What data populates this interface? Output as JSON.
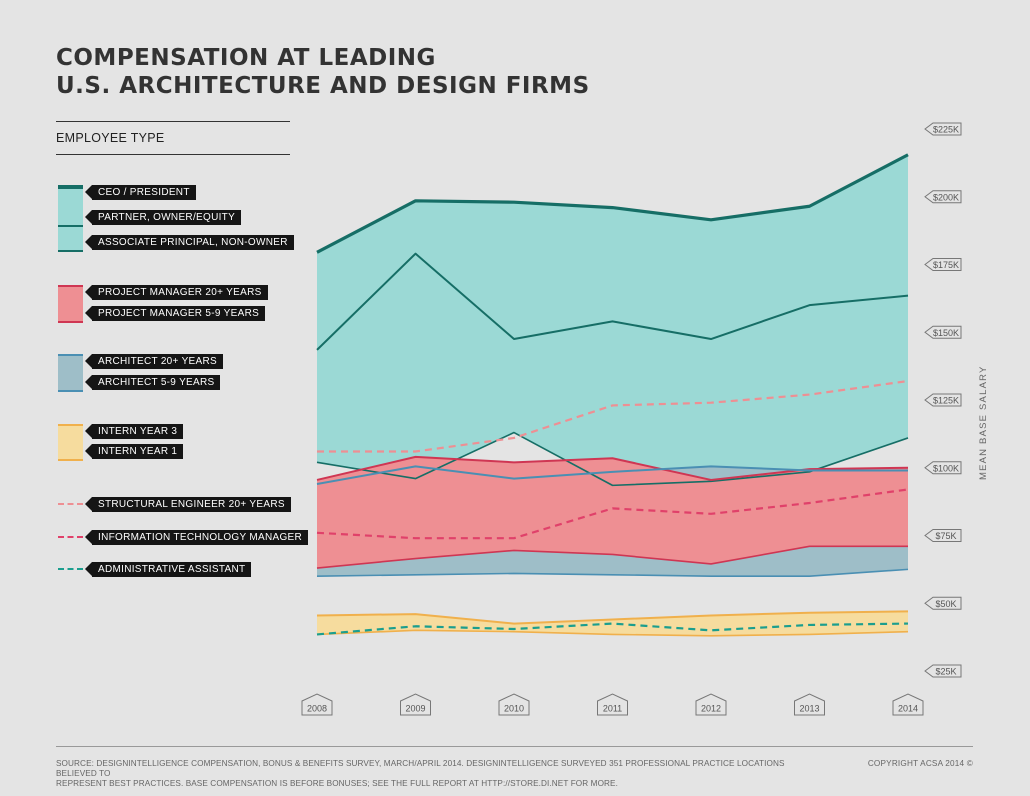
{
  "title_line1": "COMPENSATION AT LEADING",
  "title_line2": "U.S. ARCHITECTURE AND DESIGN FIRMS",
  "legend_heading": "EMPLOYEE TYPE",
  "legend": [
    {
      "label": "CEO / PRESIDENT",
      "color": "#166e66",
      "swatch": "#9bd9d5",
      "style": "solid-thick"
    },
    {
      "label": "PARTNER, OWNER/EQUITY",
      "color": "#166e66",
      "swatch": "#9bd9d5",
      "style": "solid"
    },
    {
      "label": "ASSOCIATE PRINCIPAL, NON-OWNER",
      "color": "#166e66",
      "swatch": "#9bd9d5",
      "style": "solid-thin"
    },
    {
      "label": "PROJECT MANAGER 20+ YEARS",
      "color": "#cf3653",
      "swatch": "#ee8f93",
      "style": "solid"
    },
    {
      "label": "PROJECT MANAGER 5-9 YEARS",
      "color": "#cf3653",
      "swatch": "#ee8f93",
      "style": "solid-thin"
    },
    {
      "label": "ARCHITECT 20+ YEARS",
      "color": "#4a8fb3",
      "swatch": "#9ebec8",
      "style": "solid"
    },
    {
      "label": "ARCHITECT 5-9 YEARS",
      "color": "#4a8fb3",
      "swatch": "#9ebec8",
      "style": "solid-thin"
    },
    {
      "label": "INTERN YEAR 3",
      "color": "#f0b04c",
      "swatch": "#f6dc9e",
      "style": "solid"
    },
    {
      "label": "INTERN YEAR 1",
      "color": "#f0b04c",
      "swatch": "#f6dc9e",
      "style": "solid-thin"
    },
    {
      "label": "STRUCTURAL ENGINEER 20+ YEARS",
      "color": "#ee8f93",
      "style": "dashed"
    },
    {
      "label": "INFORMATION TECHNOLOGY MANAGER",
      "color": "#e0416a",
      "style": "dashed"
    },
    {
      "label": "ADMINISTRATIVE ASSISTANT",
      "color": "#1b9e8e",
      "style": "dashed"
    }
  ],
  "chart_data": {
    "type": "area",
    "x": [
      "2008",
      "2009",
      "2010",
      "2011",
      "2012",
      "2013",
      "2014"
    ],
    "ylabel": "MEAN BASE SALARY",
    "ylim": [
      25000,
      225000
    ],
    "yticks": [
      {
        "value": 25000,
        "label": "$25K"
      },
      {
        "value": 50000,
        "label": "$50K"
      },
      {
        "value": 75000,
        "label": "$75K"
      },
      {
        "value": 100000,
        "label": "$100K"
      },
      {
        "value": 125000,
        "label": "$125K"
      },
      {
        "value": 150000,
        "label": "$150K"
      },
      {
        "value": 175000,
        "label": "$175K"
      },
      {
        "value": 200000,
        "label": "$200K"
      },
      {
        "value": 225000,
        "label": "$225K"
      }
    ],
    "series": [
      {
        "name": "CEO / PRESIDENT",
        "values": [
          179500,
          198500,
          198000,
          196000,
          191500,
          196500,
          215500
        ]
      },
      {
        "name": "PARTNER, OWNER/EQUITY",
        "values": [
          143500,
          179000,
          147500,
          154000,
          147500,
          160000,
          163500
        ]
      },
      {
        "name": "ASSOCIATE PRINCIPAL, NON-OWNER",
        "values": [
          102000,
          96000,
          113000,
          93500,
          95000,
          98500,
          111000
        ]
      },
      {
        "name": "PROJECT MANAGER 20+ YEARS",
        "values": [
          95500,
          104000,
          102000,
          103500,
          95500,
          99500,
          100000
        ]
      },
      {
        "name": "PROJECT MANAGER 5-9 YEARS",
        "values": [
          63000,
          66500,
          69500,
          68000,
          64500,
          71000,
          71000
        ]
      },
      {
        "name": "ARCHITECT 20+ YEARS",
        "values": [
          94000,
          100500,
          96000,
          98500,
          100500,
          99000,
          99000
        ]
      },
      {
        "name": "ARCHITECT 5-9 YEARS",
        "values": [
          60000,
          60500,
          61000,
          60500,
          60000,
          60000,
          62500
        ]
      },
      {
        "name": "INTERN YEAR 3",
        "values": [
          45500,
          46000,
          42500,
          44000,
          45500,
          46500,
          47000
        ]
      },
      {
        "name": "INTERN YEAR 1",
        "values": [
          38500,
          40000,
          39500,
          38500,
          38000,
          38500,
          39500
        ]
      },
      {
        "name": "STRUCTURAL ENGINEER 20+ YEARS",
        "values": [
          106000,
          106000,
          111000,
          123000,
          124000,
          127000,
          132000
        ]
      },
      {
        "name": "INFORMATION TECHNOLOGY MANAGER",
        "values": [
          76000,
          74000,
          74000,
          85000,
          83000,
          87000,
          92000
        ]
      },
      {
        "name": "ADMINISTRATIVE ASSISTANT",
        "values": [
          38500,
          41500,
          40500,
          42500,
          40000,
          42000,
          42500
        ]
      }
    ],
    "bands": [
      {
        "upper": "CEO / PRESIDENT",
        "lower": "ASSOCIATE PRINCIPAL, NON-OWNER",
        "color": "#9bd9d5"
      },
      {
        "upper": "ARCHITECT 20+ YEARS",
        "lower": "ARCHITECT 5-9 YEARS",
        "color": "#9ebec8"
      },
      {
        "upper": "PROJECT MANAGER 20+ YEARS",
        "lower": "PROJECT MANAGER 5-9 YEARS",
        "color": "#ee8f93"
      },
      {
        "upper": "INTERN YEAR 3",
        "lower": "INTERN YEAR 1",
        "color": "#f6dc9e"
      }
    ],
    "grid": false,
    "legend_position": "left"
  },
  "footer": {
    "source_line1": "SOURCE: DESIGNINTELLIGENCE COMPENSATION, BONUS & BENEFITS SURVEY, MARCH/APRIL 2014. DESIGNINTELLIGENCE SURVEYED 351 PROFESSIONAL PRACTICE LOCATIONS BELIEVED TO",
    "source_line2": "REPRESENT BEST PRACTICES. BASE COMPENSATION IS BEFORE BONUSES; SEE THE FULL REPORT AT HTTP://STORE.DI.NET FOR MORE.",
    "copyright": "COPYRIGHT ACSA 2014 ©"
  }
}
